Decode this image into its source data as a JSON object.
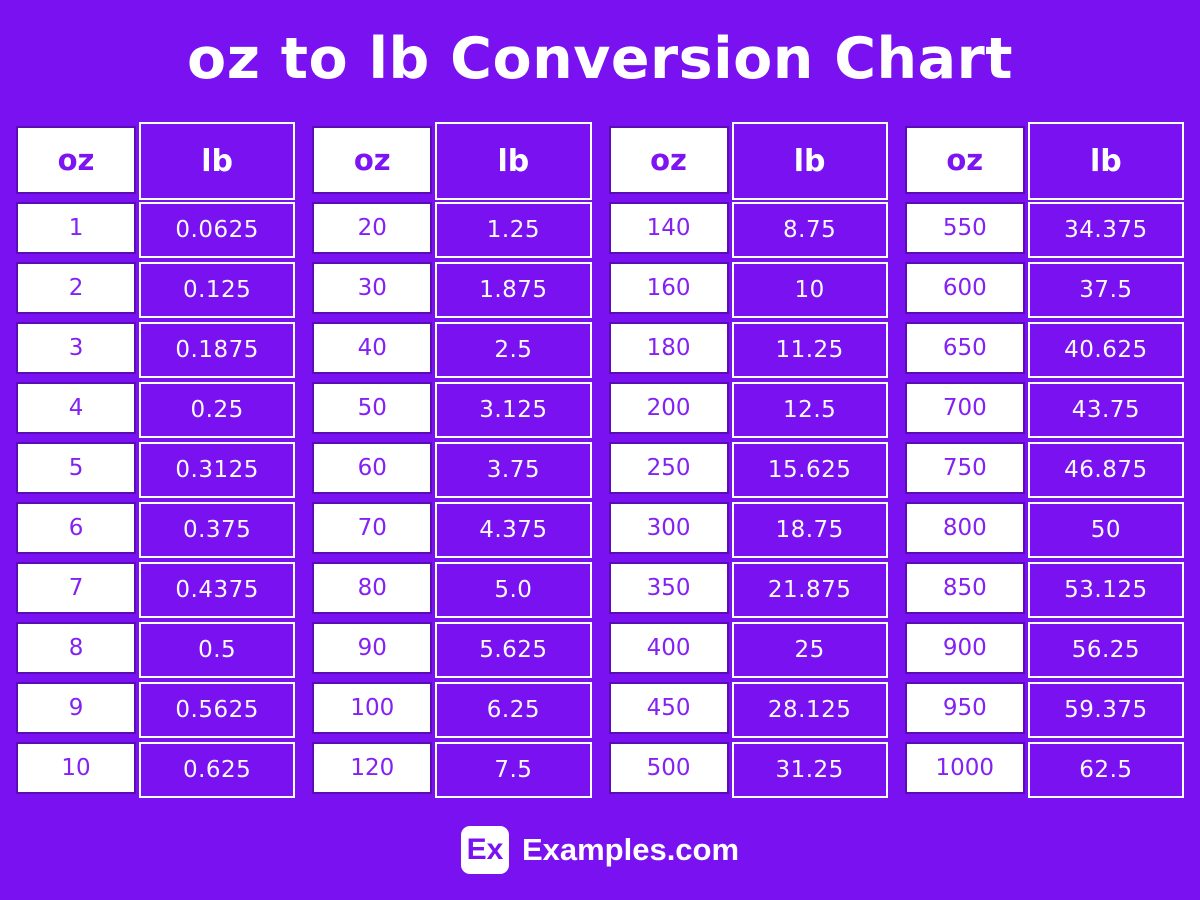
{
  "title": "oz to lb Conversion Chart",
  "headers": {
    "oz": "oz",
    "lb": "lb"
  },
  "footer": {
    "logo": "Ex",
    "site": "Examples.com"
  },
  "colors": {
    "background": "#7A11F1",
    "cell_purple": "#7A11F1",
    "oz_text_purple": "#7D15F2",
    "oz_cell_border": "#5B0CB6",
    "lb_text_white": "#FFFFFF",
    "title_white": "#FFFFFF"
  },
  "chart_data": {
    "type": "table",
    "title": "oz to lb Conversion Chart",
    "columns": [
      "oz",
      "lb"
    ],
    "tables": [
      {
        "rows": [
          [
            "1",
            "0.0625"
          ],
          [
            "2",
            "0.125"
          ],
          [
            "3",
            "0.1875"
          ],
          [
            "4",
            "0.25"
          ],
          [
            "5",
            "0.3125"
          ],
          [
            "6",
            "0.375"
          ],
          [
            "7",
            "0.4375"
          ],
          [
            "8",
            "0.5"
          ],
          [
            "9",
            "0.5625"
          ],
          [
            "10",
            "0.625"
          ]
        ]
      },
      {
        "rows": [
          [
            "20",
            "1.25"
          ],
          [
            "30",
            "1.875"
          ],
          [
            "40",
            "2.5"
          ],
          [
            "50",
            "3.125"
          ],
          [
            "60",
            "3.75"
          ],
          [
            "70",
            "4.375"
          ],
          [
            "80",
            "5.0"
          ],
          [
            "90",
            "5.625"
          ],
          [
            "100",
            "6.25"
          ],
          [
            "120",
            "7.5"
          ]
        ]
      },
      {
        "rows": [
          [
            "140",
            "8.75"
          ],
          [
            "160",
            "10"
          ],
          [
            "180",
            "11.25"
          ],
          [
            "200",
            "12.5"
          ],
          [
            "250",
            "15.625"
          ],
          [
            "300",
            "18.75"
          ],
          [
            "350",
            "21.875"
          ],
          [
            "400",
            "25"
          ],
          [
            "450",
            "28.125"
          ],
          [
            "500",
            "31.25"
          ]
        ]
      },
      {
        "rows": [
          [
            "550",
            "34.375"
          ],
          [
            "600",
            "37.5"
          ],
          [
            "650",
            "40.625"
          ],
          [
            "700",
            "43.75"
          ],
          [
            "750",
            "46.875"
          ],
          [
            "800",
            "50"
          ],
          [
            "850",
            "53.125"
          ],
          [
            "900",
            "56.25"
          ],
          [
            "950",
            "59.375"
          ],
          [
            "1000",
            "62.5"
          ]
        ]
      }
    ]
  }
}
